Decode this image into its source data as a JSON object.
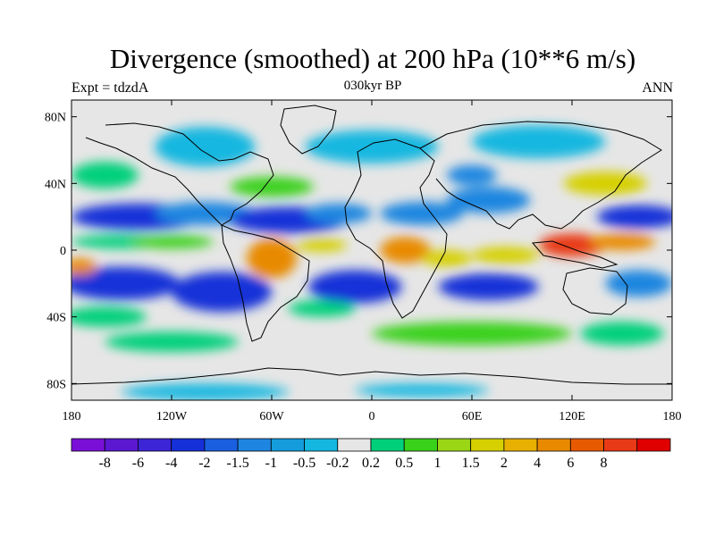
{
  "title": "Divergence (smoothed) at 200 hPa (10**6 m/s)",
  "subtitle_left": "Expt = tdzdA",
  "subtitle_center": "030kyr BP",
  "subtitle_right": "ANN",
  "x_axis": {
    "ticks": [
      {
        "value": -180,
        "label": "180"
      },
      {
        "value": -120,
        "label": "120W"
      },
      {
        "value": -60,
        "label": "60W"
      },
      {
        "value": 0,
        "label": "0"
      },
      {
        "value": 60,
        "label": "60E"
      },
      {
        "value": 120,
        "label": "120E"
      },
      {
        "value": 180,
        "label": "180"
      }
    ],
    "range": [
      -180,
      180
    ]
  },
  "y_axis": {
    "ticks": [
      {
        "value": 80,
        "label": "80N"
      },
      {
        "value": 40,
        "label": "40N"
      },
      {
        "value": 0,
        "label": "0"
      },
      {
        "value": -40,
        "label": "40S"
      },
      {
        "value": -80,
        "label": "80S"
      }
    ],
    "range": [
      -90,
      90
    ]
  },
  "colorbar": {
    "colors": [
      "#7a10d8",
      "#5b18d0",
      "#3c25d6",
      "#1530d8",
      "#1a5fe0",
      "#1e86e0",
      "#149cdc",
      "#14b7e0",
      "#e6e6e6",
      "#00d07a",
      "#3ad11a",
      "#9ad616",
      "#d6d000",
      "#e8b000",
      "#e88a00",
      "#e85a00",
      "#e83a16",
      "#e00000"
    ],
    "labels": [
      "-8",
      "-6",
      "-4",
      "-2",
      "-1.5",
      "-1",
      "-0.5",
      "-0.2",
      "0.2",
      "0.5",
      "1",
      "1.5",
      "2",
      "4",
      "6",
      "8"
    ]
  },
  "palette": {
    "neutral": "#e6e6e6",
    "neg_light": "#14b7e0",
    "neg_mid": "#1e86e0",
    "neg_strong": "#1530d8",
    "pos_light": "#00d07a",
    "pos_mid": "#3ad11a",
    "pos_yellow": "#d6d000",
    "pos_orange": "#e88a00",
    "pos_red": "#e83a16"
  }
}
